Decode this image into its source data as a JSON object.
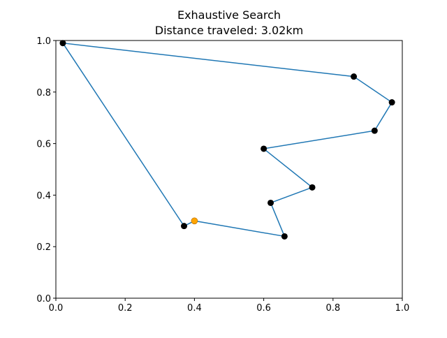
{
  "title_line1": "Exhaustive Search",
  "title_line2": "Distance traveled: 3.02km",
  "chart_data": {
    "type": "line",
    "title": "Exhaustive Search\nDistance traveled: 3.02km",
    "xlabel": "",
    "ylabel": "",
    "xlim": [
      0.0,
      1.0
    ],
    "ylim": [
      0.0,
      1.0
    ],
    "grid": false,
    "xticks": [
      "0.0",
      "0.2",
      "0.4",
      "0.6",
      "0.8",
      "1.0"
    ],
    "yticks": [
      "0.0",
      "0.2",
      "0.4",
      "0.6",
      "0.8",
      "1.0"
    ],
    "route_color": "#1f77b4",
    "city_color": "#000000",
    "start_color": "#ffa500",
    "route": [
      {
        "x": 0.4,
        "y": 0.3
      },
      {
        "x": 0.66,
        "y": 0.24
      },
      {
        "x": 0.62,
        "y": 0.37
      },
      {
        "x": 0.74,
        "y": 0.43
      },
      {
        "x": 0.6,
        "y": 0.58
      },
      {
        "x": 0.92,
        "y": 0.65
      },
      {
        "x": 0.97,
        "y": 0.76
      },
      {
        "x": 0.86,
        "y": 0.86
      },
      {
        "x": 0.02,
        "y": 0.99
      },
      {
        "x": 0.37,
        "y": 0.28
      },
      {
        "x": 0.4,
        "y": 0.3
      }
    ],
    "cities": [
      {
        "x": 0.66,
        "y": 0.24
      },
      {
        "x": 0.62,
        "y": 0.37
      },
      {
        "x": 0.74,
        "y": 0.43
      },
      {
        "x": 0.6,
        "y": 0.58
      },
      {
        "x": 0.92,
        "y": 0.65
      },
      {
        "x": 0.97,
        "y": 0.76
      },
      {
        "x": 0.86,
        "y": 0.86
      },
      {
        "x": 0.02,
        "y": 0.99
      },
      {
        "x": 0.37,
        "y": 0.28
      }
    ],
    "start": {
      "x": 0.4,
      "y": 0.3
    }
  }
}
